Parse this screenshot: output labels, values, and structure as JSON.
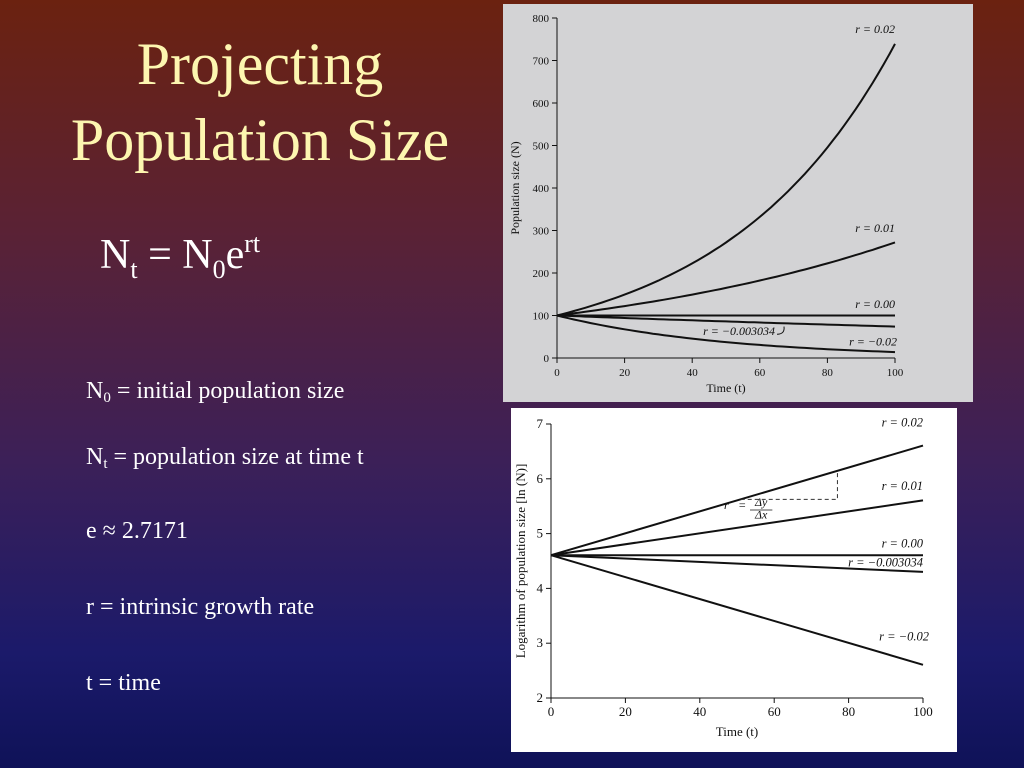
{
  "slide": {
    "title_line1": "Projecting",
    "title_line2": "Population Size",
    "formula": {
      "lhs": "N",
      "lhs_sub": "t",
      "eq": " = N",
      "n0_sub": "0",
      "base": "e",
      "exp": "rt"
    },
    "definitions": [
      {
        "sym": "N",
        "sub": "0",
        "text": " = initial population size"
      },
      {
        "sym": "N",
        "sub": "t",
        "text": " = population size at time t"
      },
      {
        "sym": "e ≈ 2.7171",
        "sub": "",
        "text": ""
      },
      {
        "sym": "r = intrinsic growth rate",
        "sub": "",
        "text": ""
      },
      {
        "sym": "t = time",
        "sub": "",
        "text": ""
      }
    ]
  },
  "chart_data": [
    {
      "type": "line",
      "xlabel": "Time (t)",
      "ylabel": "Population size (N)",
      "xlim": [
        0,
        100
      ],
      "ylim": [
        0,
        800
      ],
      "xticks": [
        0,
        20,
        40,
        60,
        80,
        100
      ],
      "yticks": [
        0,
        100,
        200,
        300,
        400,
        500,
        600,
        700,
        800
      ],
      "x": [
        0,
        10,
        20,
        30,
        40,
        50,
        60,
        70,
        80,
        90,
        100
      ],
      "series": [
        {
          "name": "r = 0.02",
          "values": [
            100,
            122,
            149,
            182,
            223,
            272,
            332,
            406,
            495,
            605,
            739
          ]
        },
        {
          "name": "r = 0.01",
          "values": [
            100,
            111,
            122,
            135,
            149,
            165,
            182,
            201,
            223,
            246,
            272
          ]
        },
        {
          "name": "r = 0.00",
          "values": [
            100,
            100,
            100,
            100,
            100,
            100,
            100,
            100,
            100,
            100,
            100
          ]
        },
        {
          "name": "r = −0.003034",
          "values": [
            100,
            97,
            94,
            91,
            89,
            86,
            83,
            81,
            78,
            76,
            74
          ]
        },
        {
          "name": "r = −0.02",
          "values": [
            100,
            82,
            67,
            55,
            45,
            37,
            30,
            25,
            20,
            17,
            14
          ]
        }
      ],
      "labels": {
        "r002": "r = 0.02",
        "r001": "r = 0.01",
        "r000": "r = 0.00",
        "rneg0030": "r = −0.003034",
        "rneg002": "r = −0.02"
      }
    },
    {
      "type": "line",
      "xlabel": "Time (t)",
      "ylabel": "Logarithm of population size [ln (N)]",
      "xlim": [
        0,
        100
      ],
      "ylim": [
        2,
        7
      ],
      "xticks": [
        0,
        20,
        40,
        60,
        80,
        100
      ],
      "yticks": [
        2,
        3,
        4,
        5,
        6,
        7
      ],
      "x": [
        0,
        100
      ],
      "series": [
        {
          "name": "r = 0.02",
          "values": [
            4.605,
            6.605
          ]
        },
        {
          "name": "r = 0.01",
          "values": [
            4.605,
            5.605
          ]
        },
        {
          "name": "r = 0.00",
          "values": [
            4.605,
            4.605
          ]
        },
        {
          "name": "r = −0.003034",
          "values": [
            4.605,
            4.302
          ]
        },
        {
          "name": "r = −0.02",
          "values": [
            4.605,
            2.605
          ]
        }
      ],
      "slope_annotation": {
        "x0": 51,
        "x1": 77,
        "r": "r",
        "eq": "=",
        "num": "Δy",
        "den": "Δx"
      },
      "labels": {
        "r002": "r = 0.02",
        "r001": "r = 0.01",
        "r000": "r = 0.00",
        "rneg0030": "r = −0.003034",
        "rneg002": "r =  −0.02"
      }
    }
  ]
}
